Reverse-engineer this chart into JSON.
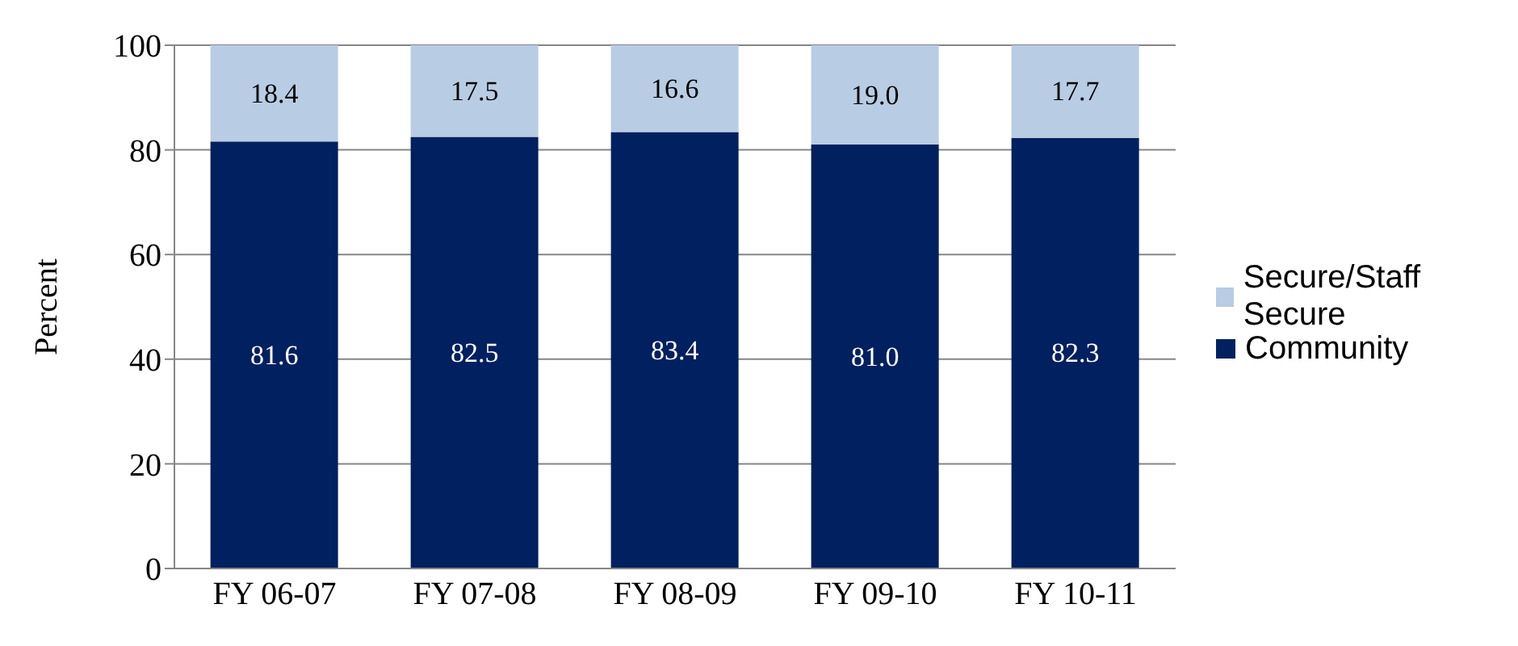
{
  "chart_data": {
    "type": "bar",
    "stacked": true,
    "ylabel": "Percent",
    "categories": [
      "FY 06-07",
      "FY 07-08",
      "FY 08-09",
      "FY 09-10",
      "FY 10-11"
    ],
    "series": [
      {
        "name": "Community",
        "color": "#002060",
        "values": [
          81.6,
          82.5,
          83.4,
          81.0,
          82.3
        ],
        "value_labels": [
          "81.6",
          "82.5",
          "83.4",
          "81.0",
          "82.3"
        ]
      },
      {
        "name": "Secure/Staff Secure",
        "color": "#b8cce4",
        "values": [
          18.4,
          17.5,
          16.6,
          19.0,
          17.7
        ],
        "value_labels": [
          "18.4",
          "17.5",
          "16.6",
          "19.0",
          "17.7"
        ]
      }
    ],
    "ylim": [
      0,
      100
    ],
    "yticks": [
      0,
      20,
      40,
      60,
      80,
      100
    ],
    "grid": "y",
    "legend": "right"
  }
}
